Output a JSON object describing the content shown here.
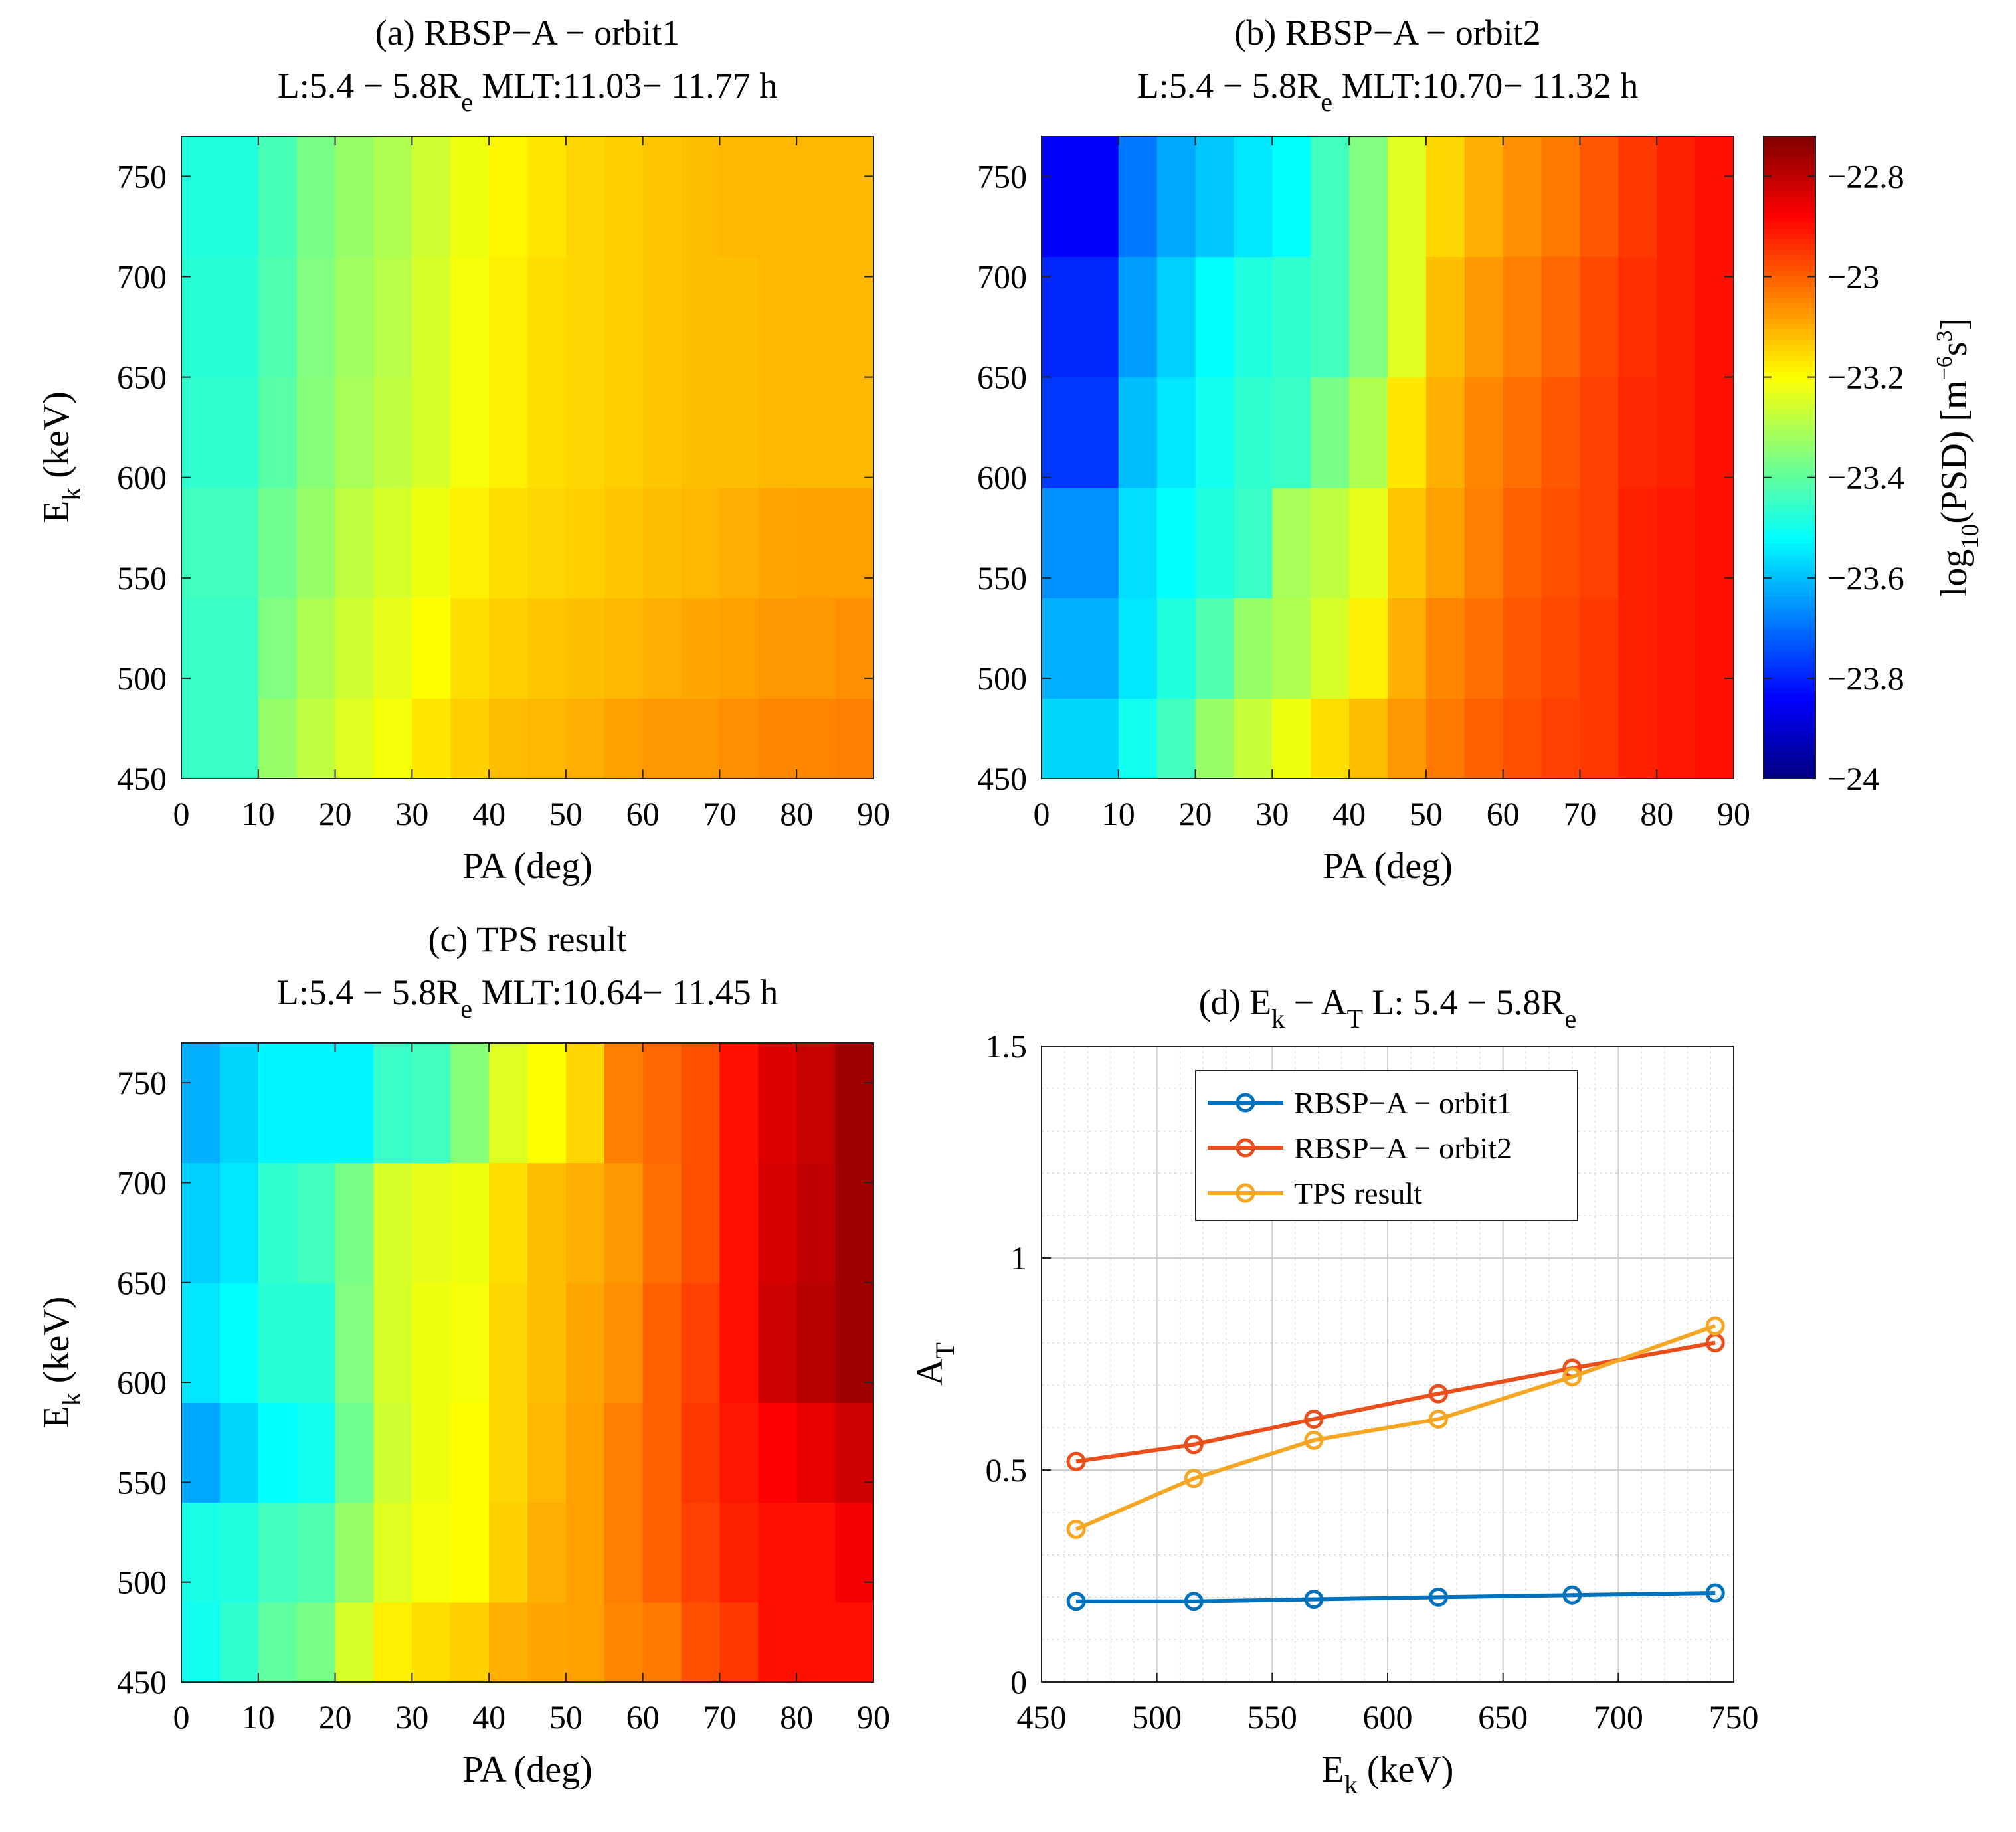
{
  "chart_data": [
    {
      "type": "heatmap",
      "panel": "a",
      "title_line1": "(a) RBSP−A − orbit1",
      "title_line2": {
        "prefix": "L:5.4 − 5.8R",
        "sub": "e",
        "suffix": "  MLT:11.03− 11.77 h"
      },
      "xlabel": "PA (deg)",
      "ylabel": {
        "main": "E",
        "sub": "k",
        "rest": " (keV)"
      },
      "x_edges": [
        0,
        10,
        15,
        20,
        25,
        30,
        35,
        40,
        45,
        50,
        55,
        60,
        65,
        70,
        75,
        80,
        85,
        90
      ],
      "y_edges": [
        450,
        490,
        540,
        595,
        650,
        710,
        770
      ],
      "xlim": [
        0,
        90
      ],
      "ylim": [
        450,
        770
      ],
      "xticks": [
        0,
        10,
        20,
        30,
        40,
        50,
        60,
        70,
        80,
        90
      ],
      "yticks": [
        450,
        500,
        550,
        600,
        650,
        700,
        750
      ],
      "values": [
        [
          -23.45,
          -23.33,
          -23.28,
          -23.24,
          -23.21,
          -23.17,
          -23.14,
          -23.12,
          -23.11,
          -23.1,
          -23.08,
          -23.07,
          -23.07,
          -23.06,
          -23.05,
          -23.05,
          -23.04
        ],
        [
          -23.45,
          -23.36,
          -23.3,
          -23.26,
          -23.23,
          -23.2,
          -23.16,
          -23.14,
          -23.13,
          -23.12,
          -23.11,
          -23.1,
          -23.09,
          -23.08,
          -23.07,
          -23.07,
          -23.06
        ],
        [
          -23.44,
          -23.38,
          -23.33,
          -23.28,
          -23.25,
          -23.22,
          -23.18,
          -23.16,
          -23.15,
          -23.14,
          -23.13,
          -23.12,
          -23.11,
          -23.1,
          -23.09,
          -23.08,
          -23.08
        ],
        [
          -23.46,
          -23.41,
          -23.35,
          -23.31,
          -23.28,
          -23.25,
          -23.21,
          -23.18,
          -23.16,
          -23.15,
          -23.14,
          -23.13,
          -23.12,
          -23.12,
          -23.11,
          -23.11,
          -23.11
        ],
        [
          -23.47,
          -23.42,
          -23.36,
          -23.32,
          -23.29,
          -23.25,
          -23.21,
          -23.18,
          -23.16,
          -23.15,
          -23.14,
          -23.13,
          -23.12,
          -23.12,
          -23.11,
          -23.11,
          -23.11
        ],
        [
          -23.48,
          -23.43,
          -23.37,
          -23.33,
          -23.3,
          -23.26,
          -23.22,
          -23.19,
          -23.17,
          -23.15,
          -23.14,
          -23.13,
          -23.12,
          -23.11,
          -23.11,
          -23.11,
          -23.11
        ]
      ]
    },
    {
      "type": "heatmap",
      "panel": "b",
      "title_line1": "(b) RBSP−A − orbit2",
      "title_line2": {
        "prefix": "L:5.4 − 5.8R",
        "sub": "e",
        "suffix": "  MLT:10.70− 11.32 h"
      },
      "xlabel": "PA (deg)",
      "x_edges": [
        0,
        10,
        15,
        20,
        25,
        30,
        35,
        40,
        45,
        50,
        55,
        60,
        65,
        70,
        75,
        80,
        85,
        90
      ],
      "y_edges": [
        450,
        490,
        540,
        595,
        650,
        710,
        770
      ],
      "xlim": [
        0,
        90
      ],
      "ylim": [
        450,
        770
      ],
      "xticks": [
        0,
        10,
        20,
        30,
        40,
        50,
        60,
        70,
        80,
        90
      ],
      "yticks": [
        450,
        500,
        550,
        600,
        650,
        700,
        750
      ],
      "values": [
        [
          -23.57,
          -23.5,
          -23.44,
          -23.33,
          -23.27,
          -23.22,
          -23.16,
          -23.12,
          -23.07,
          -23.03,
          -23.0,
          -22.98,
          -22.96,
          -22.95,
          -22.92,
          -22.91,
          -22.9
        ],
        [
          -23.62,
          -23.55,
          -23.48,
          -23.42,
          -23.33,
          -23.3,
          -23.25,
          -23.18,
          -23.1,
          -23.05,
          -23.02,
          -22.99,
          -22.97,
          -22.95,
          -22.92,
          -22.91,
          -22.9
        ],
        [
          -23.66,
          -23.56,
          -23.52,
          -23.48,
          -23.45,
          -23.31,
          -23.28,
          -23.23,
          -23.13,
          -23.08,
          -23.04,
          -23.0,
          -22.98,
          -22.96,
          -22.92,
          -22.91,
          -22.9
        ],
        [
          -23.77,
          -23.6,
          -23.55,
          -23.5,
          -23.46,
          -23.45,
          -23.37,
          -23.3,
          -23.17,
          -23.1,
          -23.05,
          -23.02,
          -22.99,
          -22.96,
          -22.93,
          -22.92,
          -22.9
        ],
        [
          -23.79,
          -23.64,
          -23.58,
          -23.52,
          -23.48,
          -23.46,
          -23.44,
          -23.36,
          -23.24,
          -23.12,
          -23.07,
          -23.04,
          -23.01,
          -22.97,
          -22.94,
          -22.92,
          -22.9
        ],
        [
          -23.84,
          -23.69,
          -23.63,
          -23.59,
          -23.55,
          -23.52,
          -23.44,
          -23.36,
          -23.24,
          -23.15,
          -23.1,
          -23.06,
          -23.03,
          -22.99,
          -22.95,
          -22.92,
          -22.9
        ]
      ]
    },
    {
      "type": "heatmap",
      "panel": "c",
      "title_line1": "(c) TPS result",
      "title_line2": {
        "prefix": "L:5.4 − 5.8R",
        "sub": "e",
        "suffix": "  MLT:10.64− 11.45 h"
      },
      "xlabel": "PA (deg)",
      "ylabel": {
        "main": "E",
        "sub": "k",
        "rest": " (keV)"
      },
      "x_edges": [
        0,
        5,
        10,
        15,
        20,
        25,
        30,
        35,
        40,
        45,
        50,
        55,
        60,
        65,
        70,
        75,
        80,
        85,
        90
      ],
      "y_edges": [
        450,
        490,
        540,
        590,
        650,
        710,
        770
      ],
      "xlim": [
        0,
        90
      ],
      "ylim": [
        450,
        770
      ],
      "xticks": [
        0,
        10,
        20,
        30,
        40,
        50,
        60,
        70,
        80,
        90
      ],
      "yticks": [
        450,
        500,
        550,
        600,
        650,
        700,
        750
      ],
      "values": [
        [
          -23.5,
          -23.46,
          -23.4,
          -23.37,
          -23.25,
          -23.18,
          -23.16,
          -23.14,
          -23.1,
          -23.09,
          -23.08,
          -23.05,
          -23.03,
          -22.98,
          -22.95,
          -22.9,
          -22.9,
          -22.9
        ],
        [
          -23.49,
          -23.48,
          -23.44,
          -23.42,
          -23.33,
          -23.24,
          -23.21,
          -23.2,
          -23.14,
          -23.1,
          -23.08,
          -23.04,
          -23.0,
          -22.96,
          -22.92,
          -22.9,
          -22.9,
          -22.87
        ],
        [
          -23.63,
          -23.57,
          -23.52,
          -23.5,
          -23.38,
          -23.26,
          -23.22,
          -23.2,
          -23.15,
          -23.11,
          -23.08,
          -23.04,
          -23.0,
          -22.95,
          -22.91,
          -22.88,
          -22.85,
          -22.82
        ],
        [
          -23.55,
          -23.52,
          -23.47,
          -23.47,
          -23.36,
          -23.25,
          -23.22,
          -23.21,
          -23.15,
          -23.12,
          -23.09,
          -23.06,
          -23.0,
          -22.96,
          -22.9,
          -22.82,
          -22.79,
          -22.76
        ],
        [
          -23.58,
          -23.55,
          -23.46,
          -23.44,
          -23.37,
          -23.25,
          -23.23,
          -23.22,
          -23.16,
          -23.12,
          -23.1,
          -23.07,
          -23.02,
          -22.98,
          -22.9,
          -22.83,
          -22.8,
          -22.76
        ],
        [
          -23.62,
          -23.57,
          -23.53,
          -23.53,
          -23.53,
          -23.45,
          -23.44,
          -23.35,
          -23.24,
          -23.2,
          -23.15,
          -23.04,
          -23.01,
          -22.98,
          -22.9,
          -22.84,
          -22.81,
          -22.76
        ]
      ]
    },
    {
      "type": "colorbar",
      "label": {
        "pre": "log",
        "sub": "10",
        "mid": "(PSD) [m",
        "sup1": "−6",
        "mid2": "s",
        "sup2": "3",
        "post": "]"
      },
      "range": [
        -24,
        -22.72
      ],
      "ticks": [
        -22.8,
        -23,
        -23.2,
        -23.4,
        -23.6,
        -23.8,
        -24
      ],
      "tick_labels": [
        "−22.8",
        "−23",
        "−23.2",
        "−23.4",
        "−23.6",
        "−23.8",
        "−24"
      ],
      "colormap": "jet"
    },
    {
      "type": "line",
      "panel": "d",
      "title": {
        "p1": "(d) E",
        "s1": "k",
        "p2": " − A",
        "s2": "T",
        "p3": "  L: 5.4 − 5.8R",
        "s3": "e"
      },
      "xlabel": {
        "main": "E",
        "sub": "k",
        "rest": " (keV)"
      },
      "ylabel": {
        "main": "A",
        "sub": "T"
      },
      "xlim": [
        450,
        750
      ],
      "ylim": [
        0,
        1.5
      ],
      "xticks": [
        450,
        500,
        550,
        600,
        650,
        700,
        750
      ],
      "yticks": [
        0,
        0.5,
        1,
        1.5
      ],
      "ytick_labels": [
        "0",
        "0.5",
        "1",
        "1.5"
      ],
      "grid": true,
      "minor_grid": true,
      "legend_position": "top",
      "x": [
        465,
        516,
        568,
        622,
        680,
        742
      ],
      "series": [
        {
          "name": "RBSP−A − orbit1",
          "color": "#0072bd",
          "values": [
            0.19,
            0.19,
            0.195,
            0.2,
            0.205,
            0.21
          ]
        },
        {
          "name": "RBSP−A − orbit2",
          "color": "#e94e1b",
          "values": [
            0.52,
            0.56,
            0.62,
            0.68,
            0.74,
            0.8
          ]
        },
        {
          "name": "TPS result",
          "color": "#f5a623",
          "values": [
            0.36,
            0.48,
            0.57,
            0.62,
            0.72,
            0.84
          ]
        }
      ]
    }
  ]
}
